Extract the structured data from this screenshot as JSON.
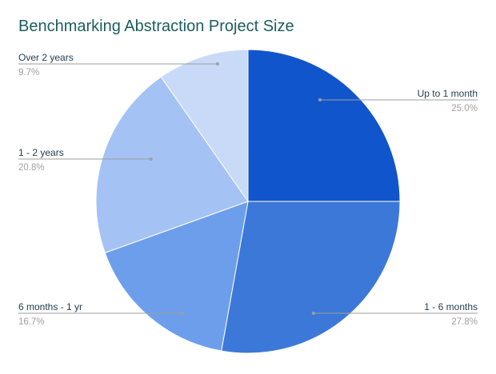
{
  "chart_data": {
    "type": "pie",
    "title": "Benchmarking Abstraction Project Size",
    "slices": [
      {
        "label": "Up to 1 month",
        "value": 25.0,
        "pct_label": "25.0%",
        "color": "#1155cc"
      },
      {
        "label": "1 - 6 months",
        "value": 27.8,
        "pct_label": "27.8%",
        "color": "#3c78d8"
      },
      {
        "label": "6 months - 1 yr",
        "value": 16.7,
        "pct_label": "16.7%",
        "color": "#6d9eeb"
      },
      {
        "label": "1 - 2 years",
        "value": 20.8,
        "pct_label": "20.8%",
        "color": "#a4c2f4"
      },
      {
        "label": "Over 2 years",
        "value": 9.7,
        "pct_label": "9.7%",
        "color": "#c9daf8"
      }
    ],
    "legend": "none",
    "label_style": "callout"
  }
}
